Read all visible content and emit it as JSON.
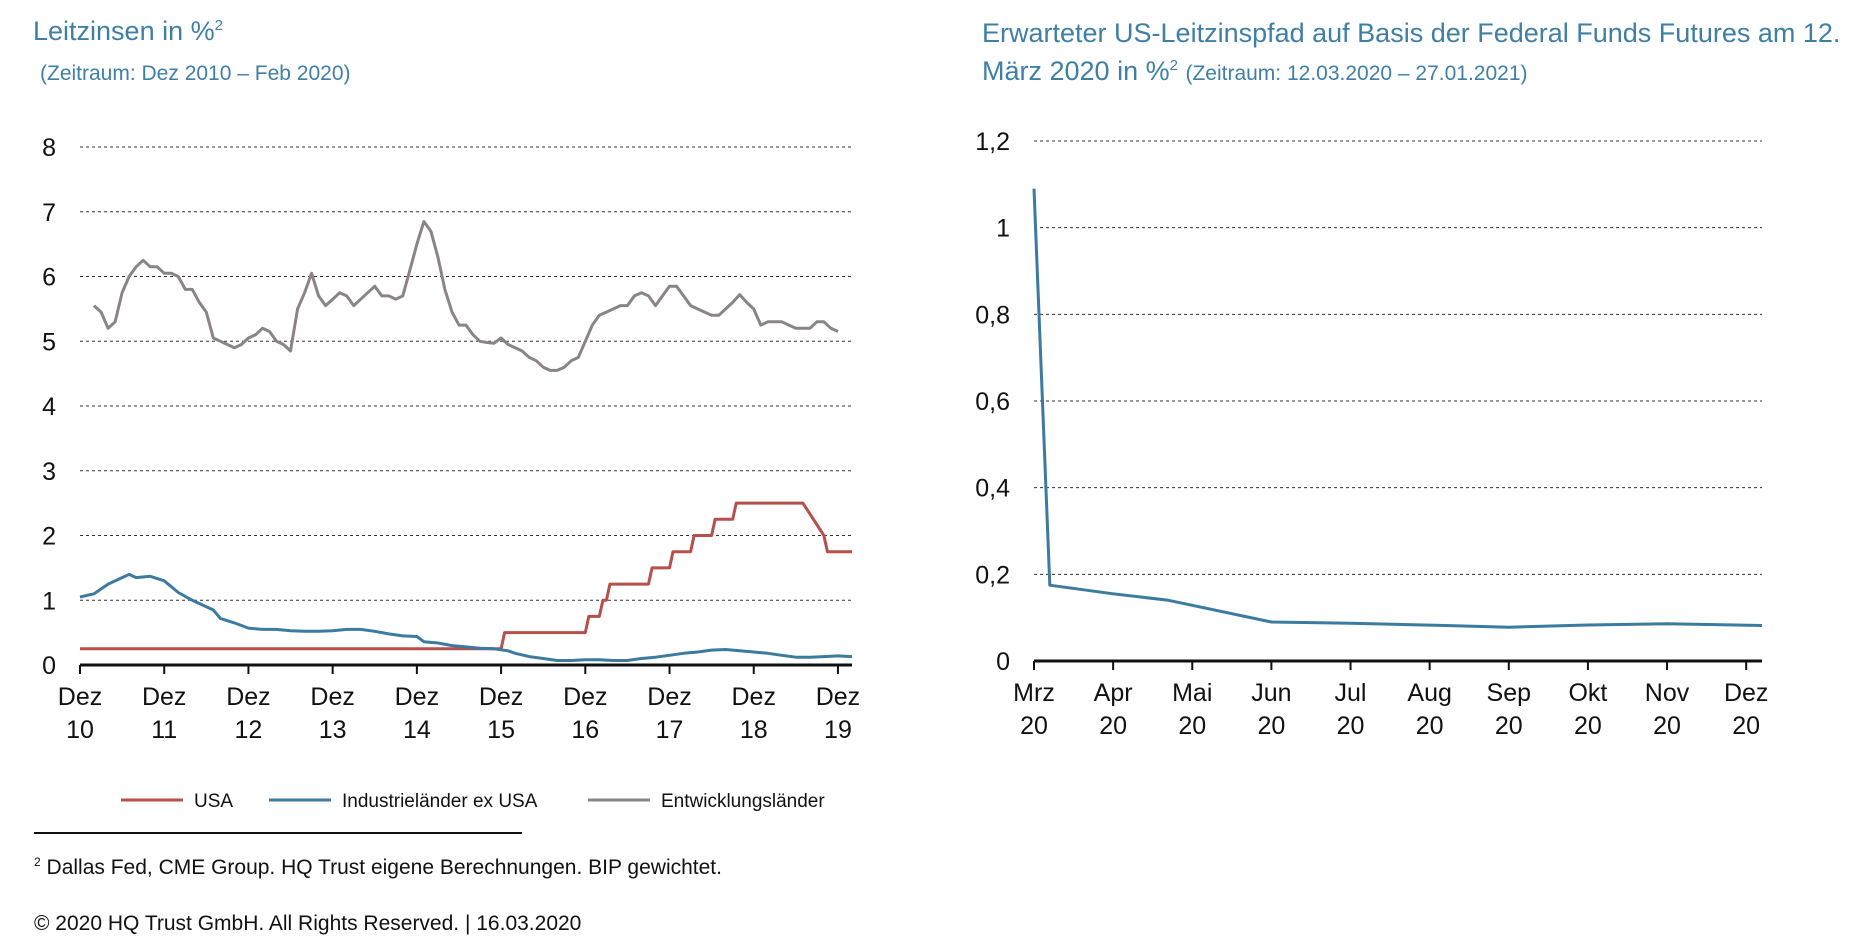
{
  "left_chart": {
    "title_text": "Leitzinsen in %",
    "title_sup": "2",
    "subtitle": "(Zeitraum: Dez 2010 – Feb 2020)"
  },
  "right_chart": {
    "title_text": "Erwarteter US-Leitzinspfad auf Basis der Federal Funds Futures am 12. März 2020 in %",
    "title_sup": "2",
    "subtitle": "(Zeitraum: 12.03.2020 – 27.01.2021)"
  },
  "footnote": {
    "sup": "2",
    "text": " Dallas Fed, CME Group. HQ Trust eigene Berechnungen. BIP gewichtet."
  },
  "copyright": "© 2020 HQ Trust GmbH. All Rights Reserved. | 16.03.2020",
  "chart_data": [
    {
      "type": "line",
      "ylim": [
        0,
        8
      ],
      "yticks": [
        "0",
        "1",
        "2",
        "3",
        "4",
        "5",
        "6",
        "7",
        "8"
      ],
      "xticks": [
        [
          "Dez",
          "10"
        ],
        [
          "Dez",
          "11"
        ],
        [
          "Dez",
          "12"
        ],
        [
          "Dez",
          "13"
        ],
        [
          "Dez",
          "14"
        ],
        [
          "Dez",
          "15"
        ],
        [
          "Dez",
          "16"
        ],
        [
          "Dez",
          "17"
        ],
        [
          "Dez",
          "18"
        ],
        [
          "Dez",
          "19"
        ]
      ],
      "x_start": "Dez 10",
      "x_end": "Feb 20",
      "grid": "horizontal dotted",
      "legend_position": "bottom",
      "series": [
        {
          "name": "USA",
          "color": "#b5504b",
          "points": [
            [
              0,
              0.25
            ],
            [
              60,
              0.25
            ],
            [
              60.5,
              0.5
            ],
            [
              72,
              0.5
            ],
            [
              72.5,
              0.75
            ],
            [
              74,
              0.75
            ],
            [
              74.5,
              1.0
            ],
            [
              75,
              1.0
            ],
            [
              75.5,
              1.25
            ],
            [
              81,
              1.25
            ],
            [
              81.5,
              1.5
            ],
            [
              84,
              1.5
            ],
            [
              84.5,
              1.75
            ],
            [
              87,
              1.75
            ],
            [
              87.5,
              2.0
            ],
            [
              90,
              2.0
            ],
            [
              90.5,
              2.25
            ],
            [
              93,
              2.25
            ],
            [
              93.5,
              2.5
            ],
            [
              103,
              2.5
            ],
            [
              106,
              2.0
            ],
            [
              106.5,
              1.75
            ],
            [
              110,
              1.75
            ]
          ]
        },
        {
          "name": "Industrieländer ex USA",
          "color": "#3c7aa0",
          "points": [
            [
              0,
              1.05
            ],
            [
              2,
              1.1
            ],
            [
              4,
              1.25
            ],
            [
              6,
              1.35
            ],
            [
              7,
              1.4
            ],
            [
              8,
              1.35
            ],
            [
              10,
              1.37
            ],
            [
              12,
              1.3
            ],
            [
              14,
              1.12
            ],
            [
              16,
              1.0
            ],
            [
              18,
              0.9
            ],
            [
              19,
              0.85
            ],
            [
              20,
              0.72
            ],
            [
              22,
              0.65
            ],
            [
              24,
              0.57
            ],
            [
              26,
              0.55
            ],
            [
              28,
              0.55
            ],
            [
              30,
              0.53
            ],
            [
              32,
              0.52
            ],
            [
              34,
              0.52
            ],
            [
              36,
              0.53
            ],
            [
              38,
              0.55
            ],
            [
              40,
              0.55
            ],
            [
              42,
              0.52
            ],
            [
              44,
              0.48
            ],
            [
              46,
              0.45
            ],
            [
              48,
              0.44
            ],
            [
              49,
              0.36
            ],
            [
              51,
              0.34
            ],
            [
              53,
              0.3
            ],
            [
              55,
              0.28
            ],
            [
              57,
              0.26
            ],
            [
              59,
              0.25
            ],
            [
              61,
              0.22
            ],
            [
              62,
              0.18
            ],
            [
              64,
              0.13
            ],
            [
              66,
              0.1
            ],
            [
              68,
              0.07
            ],
            [
              70,
              0.07
            ],
            [
              72,
              0.08
            ],
            [
              74,
              0.08
            ],
            [
              76,
              0.07
            ],
            [
              78,
              0.07
            ],
            [
              80,
              0.1
            ],
            [
              82,
              0.12
            ],
            [
              84,
              0.15
            ],
            [
              86,
              0.18
            ],
            [
              88,
              0.2
            ],
            [
              90,
              0.23
            ],
            [
              92,
              0.24
            ],
            [
              94,
              0.22
            ],
            [
              96,
              0.2
            ],
            [
              98,
              0.18
            ],
            [
              100,
              0.15
            ],
            [
              102,
              0.12
            ],
            [
              104,
              0.12
            ],
            [
              106,
              0.13
            ],
            [
              108,
              0.14
            ],
            [
              110,
              0.13
            ]
          ]
        },
        {
          "name": "Entwicklungsländer",
          "color": "#8a8485",
          "points": [
            [
              2,
              5.55
            ],
            [
              3,
              5.45
            ],
            [
              4,
              5.2
            ],
            [
              5,
              5.3
            ],
            [
              6,
              5.75
            ],
            [
              7,
              6.0
            ],
            [
              8,
              6.15
            ],
            [
              9,
              6.25
            ],
            [
              10,
              6.15
            ],
            [
              11,
              6.15
            ],
            [
              12,
              6.05
            ],
            [
              13,
              6.05
            ],
            [
              14,
              6.0
            ],
            [
              15,
              5.8
            ],
            [
              16,
              5.8
            ],
            [
              17,
              5.6
            ],
            [
              18,
              5.45
            ],
            [
              19,
              5.05
            ],
            [
              20,
              5.0
            ],
            [
              21,
              4.95
            ],
            [
              22,
              4.9
            ],
            [
              23,
              4.95
            ],
            [
              24,
              5.05
            ],
            [
              25,
              5.1
            ],
            [
              26,
              5.2
            ],
            [
              27,
              5.15
            ],
            [
              28,
              5.0
            ],
            [
              29,
              4.95
            ],
            [
              30,
              4.85
            ],
            [
              31,
              5.5
            ],
            [
              32,
              5.75
            ],
            [
              33,
              6.05
            ],
            [
              34,
              5.7
            ],
            [
              35,
              5.55
            ],
            [
              36,
              5.65
            ],
            [
              37,
              5.75
            ],
            [
              38,
              5.7
            ],
            [
              39,
              5.55
            ],
            [
              40,
              5.65
            ],
            [
              41,
              5.75
            ],
            [
              42,
              5.85
            ],
            [
              43,
              5.7
            ],
            [
              44,
              5.7
            ],
            [
              45,
              5.65
            ],
            [
              46,
              5.7
            ],
            [
              47,
              6.1
            ],
            [
              48,
              6.5
            ],
            [
              49,
              6.85
            ],
            [
              50,
              6.7
            ],
            [
              51,
              6.3
            ],
            [
              52,
              5.8
            ],
            [
              53,
              5.45
            ],
            [
              54,
              5.25
            ],
            [
              55,
              5.25
            ],
            [
              56,
              5.1
            ],
            [
              57,
              5.0
            ],
            [
              58,
              4.98
            ],
            [
              59,
              4.97
            ],
            [
              60,
              5.05
            ],
            [
              61,
              4.95
            ],
            [
              62,
              4.9
            ],
            [
              63,
              4.85
            ],
            [
              64,
              4.75
            ],
            [
              65,
              4.7
            ],
            [
              66,
              4.6
            ],
            [
              67,
              4.55
            ],
            [
              68,
              4.55
            ],
            [
              69,
              4.6
            ],
            [
              70,
              4.7
            ],
            [
              71,
              4.75
            ],
            [
              72,
              5.0
            ],
            [
              73,
              5.25
            ],
            [
              74,
              5.4
            ],
            [
              75,
              5.45
            ],
            [
              76,
              5.5
            ],
            [
              77,
              5.55
            ],
            [
              78,
              5.55
            ],
            [
              79,
              5.7
            ],
            [
              80,
              5.75
            ],
            [
              81,
              5.7
            ],
            [
              82,
              5.55
            ],
            [
              83,
              5.7
            ],
            [
              84,
              5.85
            ],
            [
              85,
              5.85
            ],
            [
              86,
              5.7
            ],
            [
              87,
              5.55
            ],
            [
              88,
              5.5
            ],
            [
              89,
              5.45
            ],
            [
              90,
              5.4
            ],
            [
              91,
              5.4
            ],
            [
              92,
              5.5
            ],
            [
              93,
              5.6
            ],
            [
              94,
              5.72
            ],
            [
              95,
              5.6
            ],
            [
              96,
              5.5
            ],
            [
              97,
              5.25
            ],
            [
              98,
              5.3
            ],
            [
              99,
              5.3
            ],
            [
              100,
              5.3
            ],
            [
              101,
              5.25
            ],
            [
              102,
              5.2
            ],
            [
              103,
              5.2
            ],
            [
              104,
              5.2
            ],
            [
              105,
              5.3
            ],
            [
              106,
              5.3
            ],
            [
              107,
              5.2
            ],
            [
              108,
              5.15
            ]
          ]
        }
      ]
    },
    {
      "type": "line",
      "ylim": [
        0,
        1.2
      ],
      "yticks": [
        "0",
        "0,2",
        "0,4",
        "0,6",
        "0,8",
        "1",
        "1,2"
      ],
      "xticks": [
        [
          "Mrz",
          "20"
        ],
        [
          "Apr",
          "20"
        ],
        [
          "Mai",
          "20"
        ],
        [
          "Jun",
          "20"
        ],
        [
          "Jul",
          "20"
        ],
        [
          "Aug",
          "20"
        ],
        [
          "Sep",
          "20"
        ],
        [
          "Okt",
          "20"
        ],
        [
          "Nov",
          "20"
        ],
        [
          "Dez",
          "20"
        ]
      ],
      "grid": "horizontal dotted",
      "series": [
        {
          "color": "#3c7aa0",
          "points": [
            [
              0,
              1.09
            ],
            [
              0.2,
              0.175
            ],
            [
              1.0,
              0.155
            ],
            [
              1.7,
              0.14
            ],
            [
              3.0,
              0.09
            ],
            [
              4.0,
              0.087
            ],
            [
              5.2,
              0.082
            ],
            [
              6.0,
              0.078
            ],
            [
              7.0,
              0.083
            ],
            [
              8.0,
              0.086
            ],
            [
              9.2,
              0.082
            ]
          ]
        }
      ]
    }
  ]
}
